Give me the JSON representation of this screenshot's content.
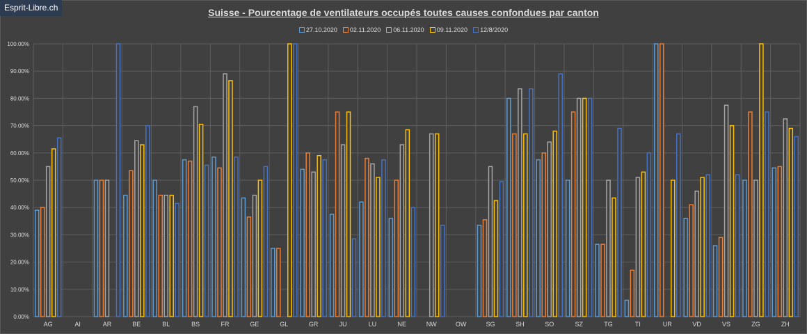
{
  "watermark": "Esprit-Libre.ch",
  "chart_data": {
    "type": "bar",
    "title": "Suisse - Pourcentage de ventilateurs occupés toutes causes confondues par canton",
    "xlabel": "",
    "ylabel": "",
    "ylim": [
      0,
      100
    ],
    "yticks": [
      "0.00%",
      "10.00%",
      "20.00%",
      "30.00%",
      "40.00%",
      "50.00%",
      "60.00%",
      "70.00%",
      "80.00%",
      "90.00%",
      "100.00%"
    ],
    "grid": true,
    "legend_position": "top",
    "categories": [
      "AG",
      "AI",
      "AR",
      "BE",
      "BL",
      "BS",
      "FR",
      "GE",
      "GL",
      "GR",
      "JU",
      "LU",
      "NE",
      "NW",
      "OW",
      "SG",
      "SH",
      "SO",
      "SZ",
      "TG",
      "TI",
      "UR",
      "VD",
      "VS",
      "ZG",
      "ZH"
    ],
    "series": [
      {
        "name": "27.10.2020",
        "color": "#5b9bd5",
        "values": [
          39,
          null,
          50,
          44.5,
          50,
          57.5,
          58.5,
          43.5,
          25,
          54,
          37.5,
          42,
          36,
          null,
          null,
          33.5,
          80,
          57.5,
          50,
          26.5,
          6,
          100,
          36,
          26,
          50,
          54.5
        ]
      },
      {
        "name": "02.11.2020",
        "color": "#ed7d31",
        "values": [
          40,
          null,
          50,
          53.5,
          44.5,
          57,
          54.5,
          36.5,
          25,
          60,
          75,
          58,
          50,
          null,
          null,
          35.5,
          67,
          60,
          75,
          26.5,
          17,
          100,
          41,
          29,
          75,
          55
        ]
      },
      {
        "name": "06.11.2020",
        "color": "#a5a5a5",
        "values": [
          55,
          null,
          50,
          64.5,
          44.5,
          77,
          89,
          44.5,
          null,
          53,
          63,
          56,
          63,
          67,
          null,
          55,
          83.5,
          64,
          80,
          50,
          51,
          null,
          46,
          77.5,
          50,
          72.5
        ]
      },
      {
        "name": "09.11.2020",
        "color": "#ffc000",
        "values": [
          61.5,
          null,
          null,
          63,
          44.5,
          70.5,
          86.5,
          50,
          100,
          59,
          75,
          51,
          68.5,
          67,
          null,
          42.5,
          67,
          68,
          80,
          43.5,
          53,
          50,
          51,
          70,
          100,
          69
        ]
      },
      {
        "name": "12/8/2020",
        "color": "#4472c4",
        "values": [
          65.5,
          null,
          100,
          70,
          41.5,
          55.5,
          58.5,
          55,
          100,
          57.5,
          28.5,
          57.5,
          40,
          33.5,
          null,
          49.5,
          83.5,
          89,
          80,
          69,
          60,
          67,
          52,
          52,
          75,
          66
        ]
      }
    ]
  }
}
